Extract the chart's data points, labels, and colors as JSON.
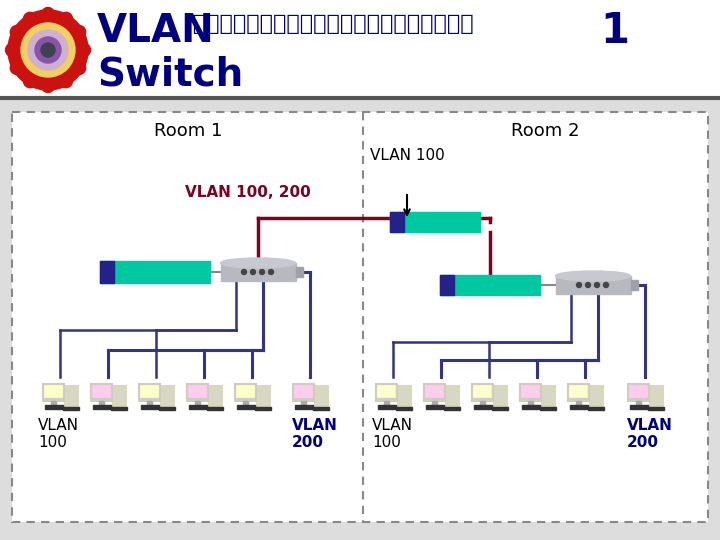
{
  "title_vlan": "VLAN",
  "title_thai": " สามารถขยายผ่านมากกว่า",
  "title_num": "1",
  "title_switch": "Switch",
  "teal_color": "#00c8a0",
  "dark_blue": "#000080",
  "dark_red": "#800020",
  "line_blue": "#333388",
  "vlan100_pc_color": "#ffffcc",
  "vlan200_pc_color": "#ffccee",
  "room1_label": "Room 1",
  "room2_label": "Room 2",
  "vlan100_label": "VLAN 100",
  "vlan100_200_label": "VLAN 100, 200",
  "vlan100_left_label": "VLAN\n100",
  "vlan200_left_label": "VLAN\n200",
  "vlan100_right_label": "VLAN\n100",
  "vlan200_right_label": "VLAN\n200"
}
